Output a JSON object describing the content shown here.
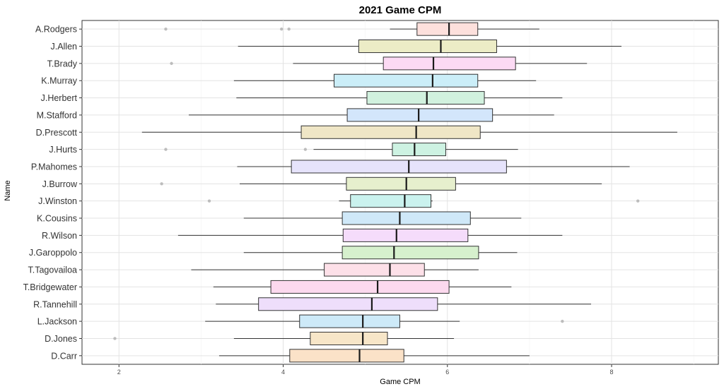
{
  "chart_data": {
    "type": "boxplot",
    "title": "2021 Game CPM",
    "xlabel": "Game CPM",
    "ylabel": "Name",
    "xlim": [
      1.55,
      9.3
    ],
    "xticks": [
      2,
      4,
      6,
      8
    ],
    "grid": true,
    "legend": "none",
    "outlier_color": "#b3b3b3",
    "series": [
      {
        "name": "A.Rodgers",
        "whisker_low": 5.3,
        "q1": 5.63,
        "median": 6.02,
        "q3": 6.37,
        "whisker_high": 7.12,
        "outliers": [
          2.57,
          3.98,
          4.07
        ],
        "fill": "#fde0dc"
      },
      {
        "name": "J.Allen",
        "whisker_low": 3.45,
        "q1": 4.92,
        "median": 5.92,
        "q3": 6.6,
        "whisker_high": 8.12,
        "outliers": [],
        "fill": "#ececc6"
      },
      {
        "name": "T.Brady",
        "whisker_low": 4.12,
        "q1": 5.22,
        "median": 5.83,
        "q3": 6.83,
        "whisker_high": 7.7,
        "outliers": [
          2.64
        ],
        "fill": "#fcdaf4"
      },
      {
        "name": "K.Murray",
        "whisker_low": 3.4,
        "q1": 4.62,
        "median": 5.82,
        "q3": 6.37,
        "whisker_high": 7.08,
        "outliers": [],
        "fill": "#cbeef8"
      },
      {
        "name": "J.Herbert",
        "whisker_low": 3.43,
        "q1": 5.02,
        "median": 5.75,
        "q3": 6.45,
        "whisker_high": 7.4,
        "outliers": [],
        "fill": "#d1f1de"
      },
      {
        "name": "M.Stafford",
        "whisker_low": 2.85,
        "q1": 4.78,
        "median": 5.65,
        "q3": 6.55,
        "whisker_high": 7.3,
        "outliers": [],
        "fill": "#d3e6fb"
      },
      {
        "name": "D.Prescott",
        "whisker_low": 2.28,
        "q1": 4.22,
        "median": 5.62,
        "q3": 6.4,
        "whisker_high": 8.8,
        "outliers": [],
        "fill": "#efe6c6"
      },
      {
        "name": "J.Hurts",
        "whisker_low": 4.37,
        "q1": 5.33,
        "median": 5.6,
        "q3": 5.98,
        "whisker_high": 6.86,
        "outliers": [
          2.57,
          4.27
        ],
        "fill": "#cdf2e2"
      },
      {
        "name": "P.Mahomes",
        "whisker_low": 3.44,
        "q1": 4.1,
        "median": 5.53,
        "q3": 6.72,
        "whisker_high": 8.22,
        "outliers": [],
        "fill": "#e6e3fb"
      },
      {
        "name": "J.Burrow",
        "whisker_low": 3.47,
        "q1": 4.77,
        "median": 5.5,
        "q3": 6.1,
        "whisker_high": 7.88,
        "outliers": [
          2.52
        ],
        "fill": "#e6efcd"
      },
      {
        "name": "J.Winston",
        "whisker_low": 4.68,
        "q1": 4.82,
        "median": 5.48,
        "q3": 5.8,
        "whisker_high": 5.82,
        "outliers": [
          3.1,
          8.32
        ],
        "fill": "#caf2ee"
      },
      {
        "name": "K.Cousins",
        "whisker_low": 3.52,
        "q1": 4.72,
        "median": 5.42,
        "q3": 6.28,
        "whisker_high": 6.9,
        "outliers": [],
        "fill": "#cfe8f8"
      },
      {
        "name": "R.Wilson",
        "whisker_low": 2.72,
        "q1": 4.73,
        "median": 5.38,
        "q3": 6.25,
        "whisker_high": 7.4,
        "outliers": [],
        "fill": "#f5dcfb"
      },
      {
        "name": "J.Garoppolo",
        "whisker_low": 3.52,
        "q1": 4.72,
        "median": 5.35,
        "q3": 6.38,
        "whisker_high": 6.85,
        "outliers": [],
        "fill": "#d6f0cd"
      },
      {
        "name": "T.Tagovailoa",
        "whisker_low": 2.88,
        "q1": 4.5,
        "median": 5.3,
        "q3": 5.72,
        "whisker_high": 6.38,
        "outliers": [],
        "fill": "#fde0e8"
      },
      {
        "name": "T.Bridgewater",
        "whisker_low": 3.15,
        "q1": 3.85,
        "median": 5.15,
        "q3": 6.02,
        "whisker_high": 6.78,
        "outliers": [],
        "fill": "#fcd9ee"
      },
      {
        "name": "R.Tannehill",
        "whisker_low": 3.18,
        "q1": 3.7,
        "median": 5.08,
        "q3": 5.88,
        "whisker_high": 7.75,
        "outliers": [],
        "fill": "#eedefb"
      },
      {
        "name": "L.Jackson",
        "whisker_low": 3.05,
        "q1": 4.2,
        "median": 4.97,
        "q3": 5.42,
        "whisker_high": 6.15,
        "outliers": [
          7.4
        ],
        "fill": "#cdeaf8"
      },
      {
        "name": "D.Jones",
        "whisker_low": 3.4,
        "q1": 4.33,
        "median": 4.97,
        "q3": 5.27,
        "whisker_high": 6.08,
        "outliers": [
          1.95
        ],
        "fill": "#f7e6c8"
      },
      {
        "name": "D.Carr",
        "whisker_low": 3.22,
        "q1": 4.08,
        "median": 4.93,
        "q3": 5.47,
        "whisker_high": 7.0,
        "outliers": [],
        "fill": "#fbe2c8"
      }
    ]
  }
}
